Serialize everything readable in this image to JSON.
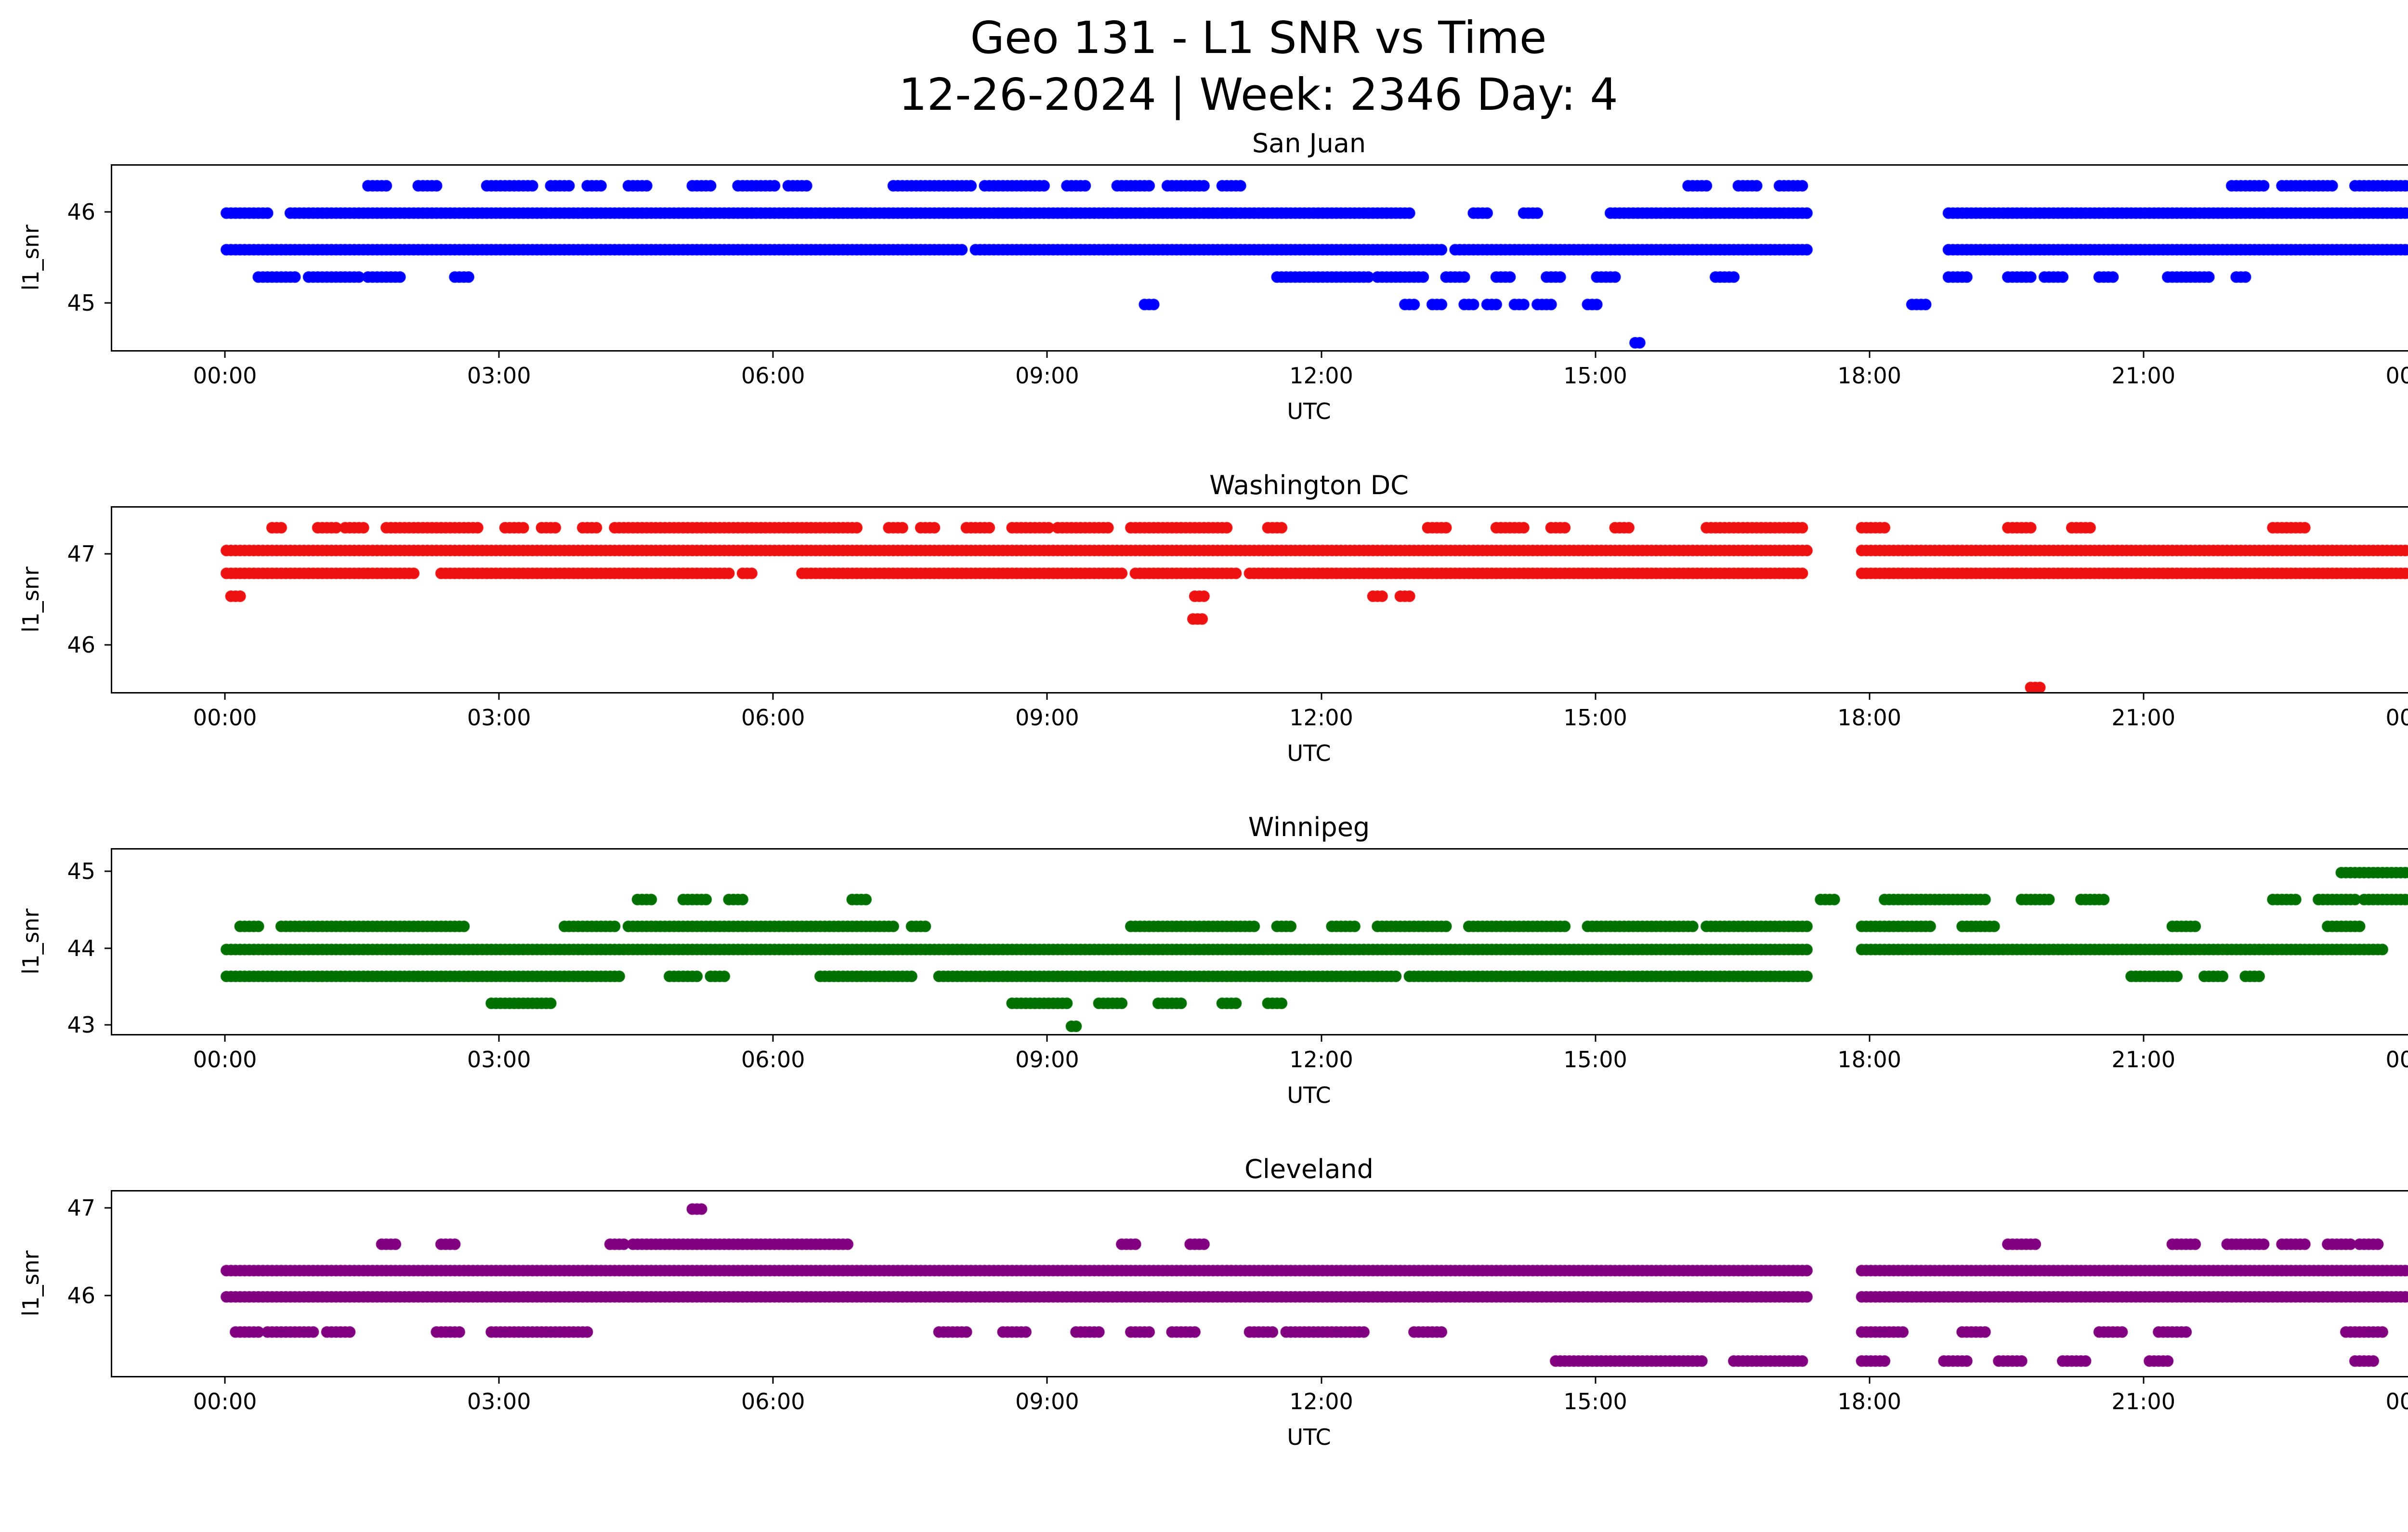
{
  "figure": {
    "title_line1": "Geo 131 - L1 SNR vs Time",
    "title_line2": "12-26-2024 | Week: 2346 Day: 4",
    "background": "#ffffff"
  },
  "chart_data": [
    {
      "type": "scatter",
      "title": "San Juan",
      "color": "#0000ff",
      "xlabel": "UTC",
      "ylabel": "l1_snr",
      "xlim": [
        -1.25,
        24.95
      ],
      "ylim": [
        44.5,
        46.52
      ],
      "yticks": [
        45,
        46
      ],
      "xticks": [
        0,
        3,
        6,
        9,
        12,
        15,
        18,
        21,
        24
      ],
      "xtick_labels": [
        "00:00",
        "03:00",
        "06:00",
        "09:00",
        "12:00",
        "15:00",
        "18:00",
        "21:00",
        "00:00"
      ],
      "marker_radius_px": 12,
      "sample_step_hours": 0.05,
      "bands": [
        {
          "snr": 46.3,
          "segments": [
            [
              1.55,
              1.75
            ],
            [
              2.1,
              2.3
            ],
            [
              2.85,
              3.1
            ],
            [
              3.15,
              3.35
            ],
            [
              3.55,
              3.75
            ],
            [
              3.95,
              4.1
            ],
            [
              4.4,
              4.6
            ],
            [
              5.1,
              5.3
            ],
            [
              5.6,
              5.8
            ],
            [
              5.85,
              6.0
            ],
            [
              6.15,
              6.35
            ],
            [
              7.3,
              7.7
            ],
            [
              7.75,
              8.15
            ],
            [
              8.3,
              8.6
            ],
            [
              8.65,
              8.95
            ],
            [
              9.2,
              9.4
            ],
            [
              9.75,
              10.1
            ],
            [
              10.3,
              10.7
            ],
            [
              10.9,
              11.1
            ],
            [
              16.0,
              16.2
            ],
            [
              16.55,
              16.75
            ],
            [
              17.0,
              17.25
            ],
            [
              21.95,
              22.3
            ],
            [
              22.5,
              22.8
            ],
            [
              22.85,
              23.05
            ],
            [
              23.3,
              23.7
            ],
            [
              23.75,
              24.3
            ]
          ]
        },
        {
          "snr": 46.0,
          "segments": [
            [
              0.0,
              0.45
            ],
            [
              0.7,
              12.95
            ],
            [
              13.65,
              13.8
            ],
            [
              14.2,
              14.35
            ],
            [
              15.15,
              17.3
            ],
            [
              18.85,
              24.3
            ]
          ]
        },
        {
          "snr": 45.6,
          "segments": [
            [
              0.0,
              8.05
            ],
            [
              8.2,
              13.3
            ],
            [
              13.45,
              17.3
            ],
            [
              18.85,
              24.3
            ]
          ]
        },
        {
          "snr": 45.3,
          "segments": [
            [
              0.35,
              0.75
            ],
            [
              0.9,
              1.2
            ],
            [
              1.25,
              1.45
            ],
            [
              1.55,
              1.9
            ],
            [
              2.5,
              2.65
            ],
            [
              11.5,
              12.5
            ],
            [
              12.6,
              13.1
            ],
            [
              13.35,
              13.55
            ],
            [
              13.9,
              14.05
            ],
            [
              14.45,
              14.6
            ],
            [
              15.0,
              15.2
            ],
            [
              16.3,
              16.5
            ],
            [
              18.85,
              19.05
            ],
            [
              19.5,
              19.75
            ],
            [
              19.9,
              20.1
            ],
            [
              20.5,
              20.65
            ],
            [
              21.25,
              21.7
            ],
            [
              22.0,
              22.1
            ]
          ]
        },
        {
          "snr": 45.0,
          "segments": [
            [
              10.05,
              10.18
            ],
            [
              12.9,
              13.0
            ],
            [
              13.2,
              13.32
            ],
            [
              13.55,
              13.65
            ],
            [
              13.8,
              13.9
            ],
            [
              14.1,
              14.2
            ],
            [
              14.35,
              14.5
            ],
            [
              14.9,
              15.02
            ],
            [
              18.45,
              18.62
            ]
          ]
        },
        {
          "snr": 44.58,
          "segments": [
            [
              15.42,
              15.5
            ]
          ]
        }
      ]
    },
    {
      "type": "scatter",
      "title": "Washington DC",
      "color": "#ee1111",
      "xlabel": "UTC",
      "ylabel": "l1_snr",
      "xlim": [
        -1.25,
        24.95
      ],
      "ylim": [
        45.5,
        47.52
      ],
      "yticks": [
        46,
        47
      ],
      "xticks": [
        0,
        3,
        6,
        9,
        12,
        15,
        18,
        21,
        24
      ],
      "xtick_labels": [
        "00:00",
        "03:00",
        "06:00",
        "09:00",
        "12:00",
        "15:00",
        "18:00",
        "21:00",
        "00:00"
      ],
      "marker_radius_px": 12,
      "sample_step_hours": 0.05,
      "bands": [
        {
          "snr": 47.3,
          "segments": [
            [
              0.5,
              0.62
            ],
            [
              1.0,
              1.2
            ],
            [
              1.3,
              1.5
            ],
            [
              1.75,
              2.05
            ],
            [
              2.1,
              2.5
            ],
            [
              2.55,
              2.75
            ],
            [
              3.05,
              3.25
            ],
            [
              3.45,
              3.6
            ],
            [
              3.9,
              4.05
            ],
            [
              4.25,
              5.3
            ],
            [
              5.35,
              6.1
            ],
            [
              6.15,
              6.9
            ],
            [
              7.25,
              7.4
            ],
            [
              7.6,
              7.75
            ],
            [
              8.1,
              8.35
            ],
            [
              8.6,
              9.0
            ],
            [
              9.1,
              9.65
            ],
            [
              9.9,
              10.4
            ],
            [
              10.45,
              10.95
            ],
            [
              11.4,
              11.55
            ],
            [
              13.15,
              13.35
            ],
            [
              13.9,
              14.2
            ],
            [
              14.5,
              14.65
            ],
            [
              15.2,
              15.35
            ],
            [
              16.2,
              17.25
            ],
            [
              17.9,
              18.15
            ],
            [
              19.5,
              19.75
            ],
            [
              20.2,
              20.4
            ],
            [
              22.4,
              22.75
            ]
          ]
        },
        {
          "snr": 47.05,
          "segments": [
            [
              0.0,
              17.3
            ],
            [
              17.9,
              24.3
            ]
          ]
        },
        {
          "snr": 46.8,
          "segments": [
            [
              0.0,
              2.05
            ],
            [
              2.35,
              5.5
            ],
            [
              5.65,
              5.78
            ],
            [
              6.3,
              9.8
            ],
            [
              9.95,
              11.05
            ],
            [
              11.2,
              17.25
            ],
            [
              17.9,
              24.3
            ]
          ]
        },
        {
          "snr": 46.55,
          "segments": [
            [
              0.05,
              0.17
            ],
            [
              10.6,
              10.72
            ],
            [
              12.55,
              12.66
            ],
            [
              12.85,
              12.96
            ]
          ]
        },
        {
          "snr": 46.3,
          "segments": [
            [
              10.58,
              10.68
            ]
          ]
        },
        {
          "snr": 45.55,
          "segments": [
            [
              19.75,
              19.85
            ]
          ]
        }
      ]
    },
    {
      "type": "scatter",
      "title": "Winnipeg",
      "color": "#007000",
      "xlabel": "UTC",
      "ylabel": "l1_snr",
      "xlim": [
        -1.25,
        24.95
      ],
      "ylim": [
        42.9,
        45.3
      ],
      "yticks": [
        43,
        44,
        45
      ],
      "xticks": [
        0,
        3,
        6,
        9,
        12,
        15,
        18,
        21,
        24
      ],
      "xtick_labels": [
        "00:00",
        "03:00",
        "06:00",
        "09:00",
        "12:00",
        "15:00",
        "18:00",
        "21:00",
        "00:00"
      ],
      "marker_radius_px": 12,
      "sample_step_hours": 0.05,
      "bands": [
        {
          "snr": 45.0,
          "segments": [
            [
              23.15,
              23.55
            ],
            [
              23.6,
              24.3
            ]
          ]
        },
        {
          "snr": 44.65,
          "segments": [
            [
              4.5,
              4.65
            ],
            [
              5.0,
              5.25
            ],
            [
              5.5,
              5.65
            ],
            [
              6.85,
              7.0
            ],
            [
              17.45,
              17.6
            ],
            [
              18.15,
              19.25
            ],
            [
              19.65,
              19.95
            ],
            [
              20.3,
              20.55
            ],
            [
              22.4,
              22.65
            ],
            [
              22.9,
              23.3
            ],
            [
              23.4,
              24.05
            ]
          ]
        },
        {
          "snr": 44.3,
          "segments": [
            [
              0.15,
              0.35
            ],
            [
              0.6,
              2.6
            ],
            [
              3.7,
              4.25
            ],
            [
              4.4,
              7.3
            ],
            [
              7.5,
              7.65
            ],
            [
              9.9,
              11.25
            ],
            [
              11.5,
              11.65
            ],
            [
              12.1,
              12.35
            ],
            [
              12.6,
              13.35
            ],
            [
              13.6,
              14.65
            ],
            [
              14.9,
              16.05
            ],
            [
              16.2,
              17.3
            ],
            [
              17.9,
              18.65
            ],
            [
              19.0,
              19.35
            ],
            [
              21.3,
              21.55
            ],
            [
              23.0,
              23.35
            ]
          ]
        },
        {
          "snr": 44.0,
          "segments": [
            [
              0.0,
              17.3
            ],
            [
              17.9,
              23.6
            ]
          ]
        },
        {
          "snr": 43.65,
          "segments": [
            [
              0.0,
              4.3
            ],
            [
              4.85,
              5.15
            ],
            [
              5.3,
              5.45
            ],
            [
              6.5,
              7.5
            ],
            [
              7.8,
              12.8
            ],
            [
              12.95,
              17.3
            ],
            [
              20.85,
              21.35
            ],
            [
              21.65,
              21.85
            ],
            [
              22.1,
              22.25
            ]
          ]
        },
        {
          "snr": 43.3,
          "segments": [
            [
              2.9,
              3.55
            ],
            [
              8.6,
              9.2
            ],
            [
              9.55,
              9.8
            ],
            [
              10.2,
              10.45
            ],
            [
              10.9,
              11.05
            ],
            [
              11.4,
              11.55
            ]
          ]
        },
        {
          "snr": 43.0,
          "segments": [
            [
              9.25,
              9.33
            ]
          ]
        }
      ]
    },
    {
      "type": "scatter",
      "title": "Cleveland",
      "color": "#800080",
      "xlabel": "UTC",
      "ylabel": "l1_snr",
      "xlim": [
        -1.25,
        24.95
      ],
      "ylim": [
        45.1,
        47.2
      ],
      "yticks": [
        46,
        47
      ],
      "xticks": [
        0,
        3,
        6,
        9,
        12,
        15,
        18,
        21,
        24
      ],
      "xtick_labels": [
        "00:00",
        "03:00",
        "06:00",
        "09:00",
        "12:00",
        "15:00",
        "18:00",
        "21:00",
        "00:00"
      ],
      "marker_radius_px": 12,
      "sample_step_hours": 0.05,
      "bands": [
        {
          "snr": 47.0,
          "segments": [
            [
              5.1,
              5.2
            ]
          ]
        },
        {
          "snr": 46.6,
          "segments": [
            [
              1.7,
              1.85
            ],
            [
              2.35,
              2.5
            ],
            [
              4.2,
              4.35
            ],
            [
              4.45,
              6.45
            ],
            [
              6.5,
              6.8
            ],
            [
              9.8,
              9.95
            ],
            [
              10.55,
              10.7
            ],
            [
              19.5,
              19.82
            ],
            [
              21.3,
              21.55
            ],
            [
              21.9,
              22.3
            ],
            [
              22.5,
              22.75
            ],
            [
              23.0,
              23.25
            ],
            [
              23.35,
              23.55
            ]
          ]
        },
        {
          "snr": 46.3,
          "segments": [
            [
              0.0,
              17.3
            ],
            [
              17.9,
              24.3
            ]
          ]
        },
        {
          "snr": 46.0,
          "segments": [
            [
              0.0,
              17.3
            ],
            [
              17.9,
              24.3
            ]
          ]
        },
        {
          "snr": 45.6,
          "segments": [
            [
              0.1,
              0.35
            ],
            [
              0.45,
              0.7
            ],
            [
              0.75,
              0.95
            ],
            [
              1.1,
              1.35
            ],
            [
              2.3,
              2.55
            ],
            [
              2.9,
              3.95
            ],
            [
              7.8,
              8.1
            ],
            [
              8.5,
              8.75
            ],
            [
              9.3,
              9.55
            ],
            [
              9.9,
              10.1
            ],
            [
              10.35,
              10.6
            ],
            [
              11.2,
              11.45
            ],
            [
              11.6,
              12.45
            ],
            [
              13.0,
              13.3
            ],
            [
              17.9,
              18.35
            ],
            [
              19.0,
              19.25
            ],
            [
              20.5,
              20.75
            ],
            [
              21.15,
              21.45
            ],
            [
              23.2,
              23.6
            ]
          ]
        },
        {
          "snr": 45.27,
          "segments": [
            [
              14.55,
              16.15
            ],
            [
              16.5,
              17.25
            ],
            [
              17.9,
              18.15
            ],
            [
              18.8,
              19.05
            ],
            [
              19.4,
              19.65
            ],
            [
              20.1,
              20.35
            ],
            [
              21.05,
              21.25
            ],
            [
              23.3,
              23.5
            ]
          ]
        }
      ]
    }
  ]
}
